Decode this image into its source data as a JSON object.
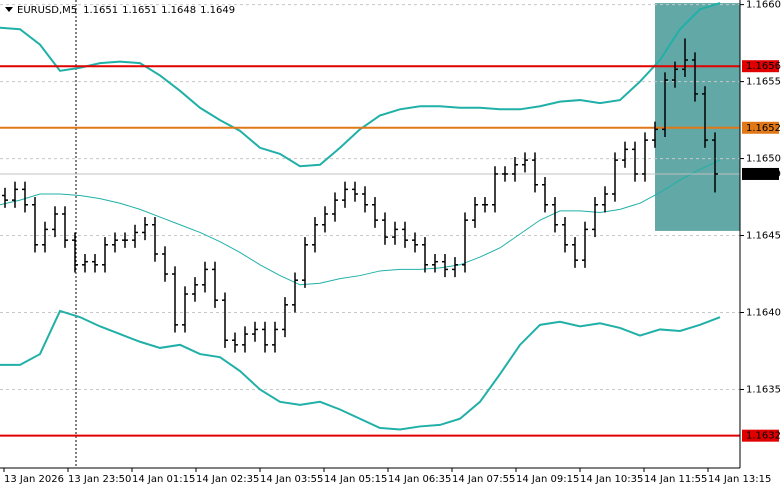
{
  "chart_data": {
    "type": "ohlc",
    "symbol": "EURUSD,M5",
    "quote": [
      1.1651,
      1.1651,
      1.1648,
      1.1649
    ],
    "ylim": [
      1.16299,
      1.16603
    ],
    "yticks": [
      {
        "value": 1.166,
        "label": "1.1660"
      },
      1.1655,
      {
        "value": 1.165,
        "label": "1.1650"
      },
      1.1645,
      {
        "value": 1.164,
        "label": "1.1640"
      },
      1.1635
    ],
    "grid": true,
    "x_labels": [
      "13 Jan 2026",
      "13 Jan 23:50",
      "14 Jan 01:15",
      "14 Jan 02:35",
      "14 Jan 03:55",
      "14 Jan 05:15",
      "14 Jan 06:35",
      "14 Jan 07:55",
      "14 Jan 09:15",
      "14 Jan 10:35",
      "14 Jan 11:55",
      "14 Jan 13:15"
    ],
    "color": "#000000",
    "ohlc": [
      [
        1.16476,
        1.16481,
        1.16468,
        1.16473
      ],
      [
        1.16473,
        1.16485,
        1.16468,
        1.1648
      ],
      [
        1.1648,
        1.16485,
        1.16465,
        1.1647
      ],
      [
        1.1647,
        1.16475,
        1.16439,
        1.16444
      ],
      [
        1.16444,
        1.16459,
        1.16439,
        1.16454
      ],
      [
        1.16454,
        1.16469,
        1.16449,
        1.16464
      ],
      [
        1.16464,
        1.16469,
        1.16442,
        1.16447
      ],
      [
        1.16447,
        1.16452,
        1.16426,
        1.16431
      ],
      [
        1.16431,
        1.16438,
        1.16426,
        1.16433
      ],
      [
        1.16433,
        1.16438,
        1.16426,
        1.16431
      ],
      [
        1.16431,
        1.16449,
        1.16426,
        1.16444
      ],
      [
        1.16444,
        1.16452,
        1.16439,
        1.16447
      ],
      [
        1.16447,
        1.16452,
        1.16442,
        1.16447
      ],
      [
        1.16447,
        1.16457,
        1.16442,
        1.16452
      ],
      [
        1.16452,
        1.16462,
        1.16447,
        1.16457
      ],
      [
        1.16457,
        1.16462,
        1.16433,
        1.16438
      ],
      [
        1.16438,
        1.16443,
        1.1642,
        1.16425
      ],
      [
        1.16425,
        1.1643,
        1.16387,
        1.16392
      ],
      [
        1.16392,
        1.16417,
        1.16387,
        1.16412
      ],
      [
        1.16412,
        1.16423,
        1.16407,
        1.16418
      ],
      [
        1.16418,
        1.16433,
        1.16413,
        1.16428
      ],
      [
        1.16428,
        1.16433,
        1.16403,
        1.16408
      ],
      [
        1.16408,
        1.16413,
        1.16377,
        1.16382
      ],
      [
        1.16382,
        1.16387,
        1.16374,
        1.16379
      ],
      [
        1.16379,
        1.16391,
        1.16374,
        1.16386
      ],
      [
        1.16386,
        1.16394,
        1.16381,
        1.16389
      ],
      [
        1.16389,
        1.16394,
        1.16374,
        1.16379
      ],
      [
        1.16379,
        1.16394,
        1.16374,
        1.16389
      ],
      [
        1.16389,
        1.1641,
        1.16384,
        1.16405
      ],
      [
        1.16405,
        1.16426,
        1.164,
        1.16421
      ],
      [
        1.16421,
        1.16449,
        1.16416,
        1.16444
      ],
      [
        1.16444,
        1.16462,
        1.16439,
        1.16457
      ],
      [
        1.16457,
        1.16469,
        1.16452,
        1.16464
      ],
      [
        1.16464,
        1.16478,
        1.16459,
        1.16473
      ],
      [
        1.16473,
        1.16485,
        1.16468,
        1.1648
      ],
      [
        1.1648,
        1.16485,
        1.16472,
        1.16477
      ],
      [
        1.16477,
        1.16482,
        1.16465,
        1.1647
      ],
      [
        1.1647,
        1.16475,
        1.16455,
        1.1646
      ],
      [
        1.1646,
        1.16465,
        1.16444,
        1.16449
      ],
      [
        1.16449,
        1.16459,
        1.16444,
        1.16454
      ],
      [
        1.16454,
        1.16459,
        1.16442,
        1.16447
      ],
      [
        1.16447,
        1.16452,
        1.16439,
        1.16444
      ],
      [
        1.16444,
        1.16449,
        1.16426,
        1.16431
      ],
      [
        1.16431,
        1.16438,
        1.16426,
        1.16433
      ],
      [
        1.16433,
        1.16438,
        1.16423,
        1.16428
      ],
      [
        1.16428,
        1.16436,
        1.16423,
        1.16431
      ],
      [
        1.16431,
        1.16465,
        1.16426,
        1.1646
      ],
      [
        1.1646,
        1.16475,
        1.16455,
        1.1647
      ],
      [
        1.1647,
        1.16475,
        1.16465,
        1.1647
      ],
      [
        1.1647,
        1.16495,
        1.16465,
        1.1649
      ],
      [
        1.1649,
        1.16495,
        1.16485,
        1.1649
      ],
      [
        1.1649,
        1.16501,
        1.16485,
        1.16496
      ],
      [
        1.16496,
        1.16504,
        1.16491,
        1.16499
      ],
      [
        1.16499,
        1.16504,
        1.16478,
        1.16483
      ],
      [
        1.16483,
        1.16488,
        1.16465,
        1.1647
      ],
      [
        1.1647,
        1.16475,
        1.16452,
        1.16457
      ],
      [
        1.16457,
        1.16462,
        1.16439,
        1.16444
      ],
      [
        1.16444,
        1.16449,
        1.16429,
        1.16434
      ],
      [
        1.16434,
        1.16459,
        1.16429,
        1.16454
      ],
      [
        1.16454,
        1.16475,
        1.16449,
        1.1647
      ],
      [
        1.1647,
        1.16482,
        1.16465,
        1.16477
      ],
      [
        1.16477,
        1.16504,
        1.16472,
        1.16499
      ],
      [
        1.16499,
        1.16511,
        1.16494,
        1.16506
      ],
      [
        1.16506,
        1.16511,
        1.16485,
        1.1649
      ],
      [
        1.1649,
        1.16517,
        1.16485,
        1.16512
      ],
      [
        1.16512,
        1.16524,
        1.16507,
        1.16519
      ],
      [
        1.16519,
        1.16556,
        1.16514,
        1.16551
      ],
      [
        1.16551,
        1.16563,
        1.16546,
        1.16558
      ],
      [
        1.16558,
        1.16578,
        1.16553,
        1.16564
      ],
      [
        1.16564,
        1.16569,
        1.16537,
        1.16542
      ],
      [
        1.16542,
        1.16547,
        1.16507,
        1.16512
      ],
      [
        1.16512,
        1.16517,
        1.16478,
        1.1649
      ]
    ],
    "bands": {
      "color": "#20b0a8",
      "series": [
        {
          "values": [
            1.16585,
            1.16584,
            1.16574,
            1.16557,
            1.16559,
            1.16562,
            1.16563,
            1.16562,
            1.16554,
            1.16544,
            1.16533,
            1.16525,
            1.16518,
            1.16507,
            1.16503,
            1.16495,
            1.16496,
            1.16507,
            1.16519,
            1.16528,
            1.16532,
            1.16534,
            1.16534,
            1.16533,
            1.16533,
            1.16532,
            1.16532,
            1.16534,
            1.16537,
            1.16538,
            1.16536,
            1.16538,
            1.1655,
            1.16564,
            1.16584,
            1.16597,
            1.16601
          ]
        },
        {
          "values": [
            1.1647,
            1.16473,
            1.16477,
            1.16477,
            1.16476,
            1.16474,
            1.16471,
            1.16467,
            1.16462,
            1.16457,
            1.16452,
            1.16446,
            1.16439,
            1.16431,
            1.16424,
            1.16418,
            1.16419,
            1.16422,
            1.16424,
            1.16427,
            1.16428,
            1.16428,
            1.16429,
            1.16431,
            1.16436,
            1.16442,
            1.16451,
            1.1646,
            1.16466,
            1.16466,
            1.16465,
            1.16467,
            1.16471,
            1.16478,
            1.16486,
            1.16493,
            1.16499
          ]
        },
        {
          "values": [
            1.16366,
            1.16366,
            1.16373,
            1.16401,
            1.16397,
            1.16391,
            1.16386,
            1.16381,
            1.16377,
            1.16379,
            1.16373,
            1.16371,
            1.16362,
            1.1635,
            1.16342,
            1.1634,
            1.16342,
            1.16337,
            1.16331,
            1.16325,
            1.16324,
            1.16326,
            1.16327,
            1.16331,
            1.16342,
            1.1636,
            1.16379,
            1.16392,
            1.16394,
            1.16391,
            1.16393,
            1.1639,
            1.16385,
            1.16389,
            1.16388,
            1.16392,
            1.16397
          ]
        }
      ]
    },
    "hlines": {
      "values": [
        1.1656,
        1.1652,
        1.1632,
        1.1649
      ],
      "colors": [
        "#e00000",
        "#e07818",
        "#e00000",
        "#c0c0c0"
      ],
      "label_colors": [
        "#e00000",
        "#e07818",
        "#e00000",
        "#000000"
      ]
    },
    "zone": {
      "values": [
        1.16453,
        1.16601
      ],
      "color": "#2e8b88"
    }
  }
}
